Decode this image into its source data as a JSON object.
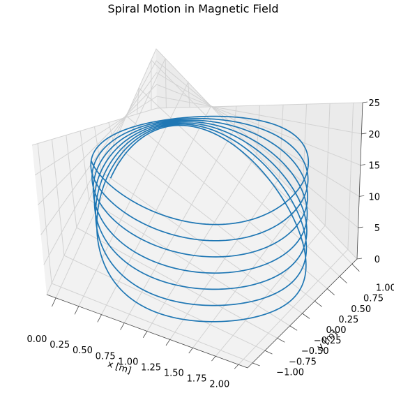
{
  "chart_data": {
    "type": "line",
    "projection": "3d",
    "title": "Spiral Motion in Magnetic Field",
    "xlabel": "x [m]",
    "ylabel": "y [m]",
    "zlabel": "",
    "xlim": [
      -0.1,
      2.1
    ],
    "ylim": [
      -1.1,
      1.1
    ],
    "zlim": [
      0,
      25
    ],
    "x_ticks": [
      "0.00",
      "0.25",
      "0.50",
      "0.75",
      "1.00",
      "1.25",
      "1.50",
      "1.75",
      "2.00"
    ],
    "y_ticks": [
      "−1.00",
      "−0.75",
      "−0.50",
      "−0.25",
      "0.00",
      "0.25",
      "0.50",
      "0.75",
      "1.00"
    ],
    "z_ticks": [
      "0",
      "5",
      "10",
      "15",
      "20",
      "25"
    ],
    "grid": true,
    "series": [
      {
        "line_color": "#1f77b4",
        "parametric": {
          "x": "1 - cos(t)",
          "y": "sin(t)",
          "z": "3.25 * t / (2*pi)",
          "t_range": [
            0,
            43.3
          ],
          "turns": 6.9,
          "radius_m": 1.0,
          "pitch_m": 3.25
        }
      }
    ]
  }
}
